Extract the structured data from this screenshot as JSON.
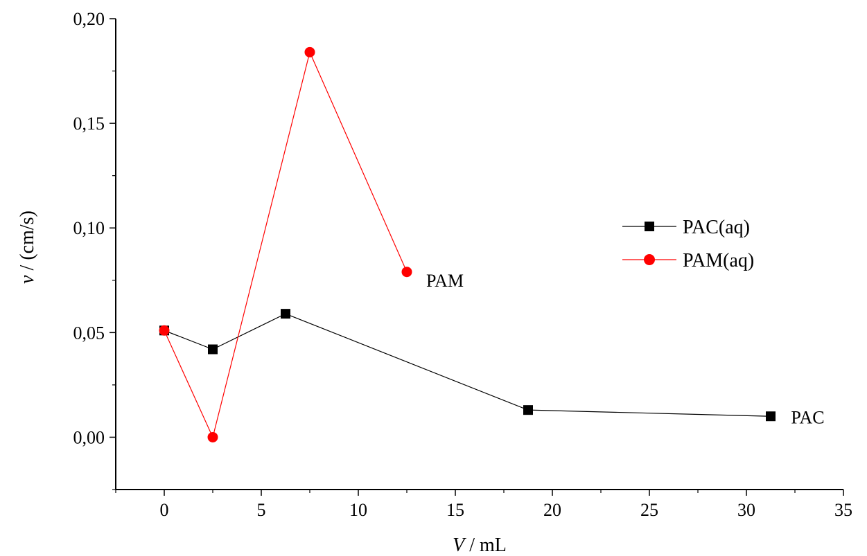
{
  "chart_data": {
    "type": "line",
    "xlabel_italic": "V",
    "xlabel_rest": " / mL",
    "ylabel_italic": "v",
    "ylabel_rest": " / (cm/s)",
    "xlim": [
      -2.5,
      35
    ],
    "ylim": [
      -0.025,
      0.2
    ],
    "xticks": [
      0,
      5,
      10,
      15,
      20,
      25,
      30,
      35
    ],
    "xtick_labels": [
      "0",
      "5",
      "10",
      "15",
      "20",
      "25",
      "30",
      "35"
    ],
    "yticks": [
      0,
      0.05,
      0.1,
      0.15,
      0.2
    ],
    "ytick_labels": [
      "0,00",
      "0,05",
      "0,10",
      "0,15",
      "0,20"
    ],
    "series": [
      {
        "name": "PAC(aq)",
        "marker": "square",
        "color": "#000000",
        "x": [
          0,
          2.5,
          6.25,
          18.75,
          31.25
        ],
        "y": [
          0.051,
          0.042,
          0.059,
          0.013,
          0.01
        ]
      },
      {
        "name": "PAM(aq)",
        "marker": "circle",
        "color": "#ff0000",
        "x": [
          0,
          2.5,
          7.5,
          12.5
        ],
        "y": [
          0.051,
          0.0,
          0.184,
          0.079
        ]
      }
    ],
    "annotations": [
      {
        "text": "PAM",
        "x": 13.5,
        "y": 0.075
      },
      {
        "text": "PAC",
        "x": 32.3,
        "y": 0.0095
      }
    ],
    "legend_placement": "right",
    "grid": false
  }
}
